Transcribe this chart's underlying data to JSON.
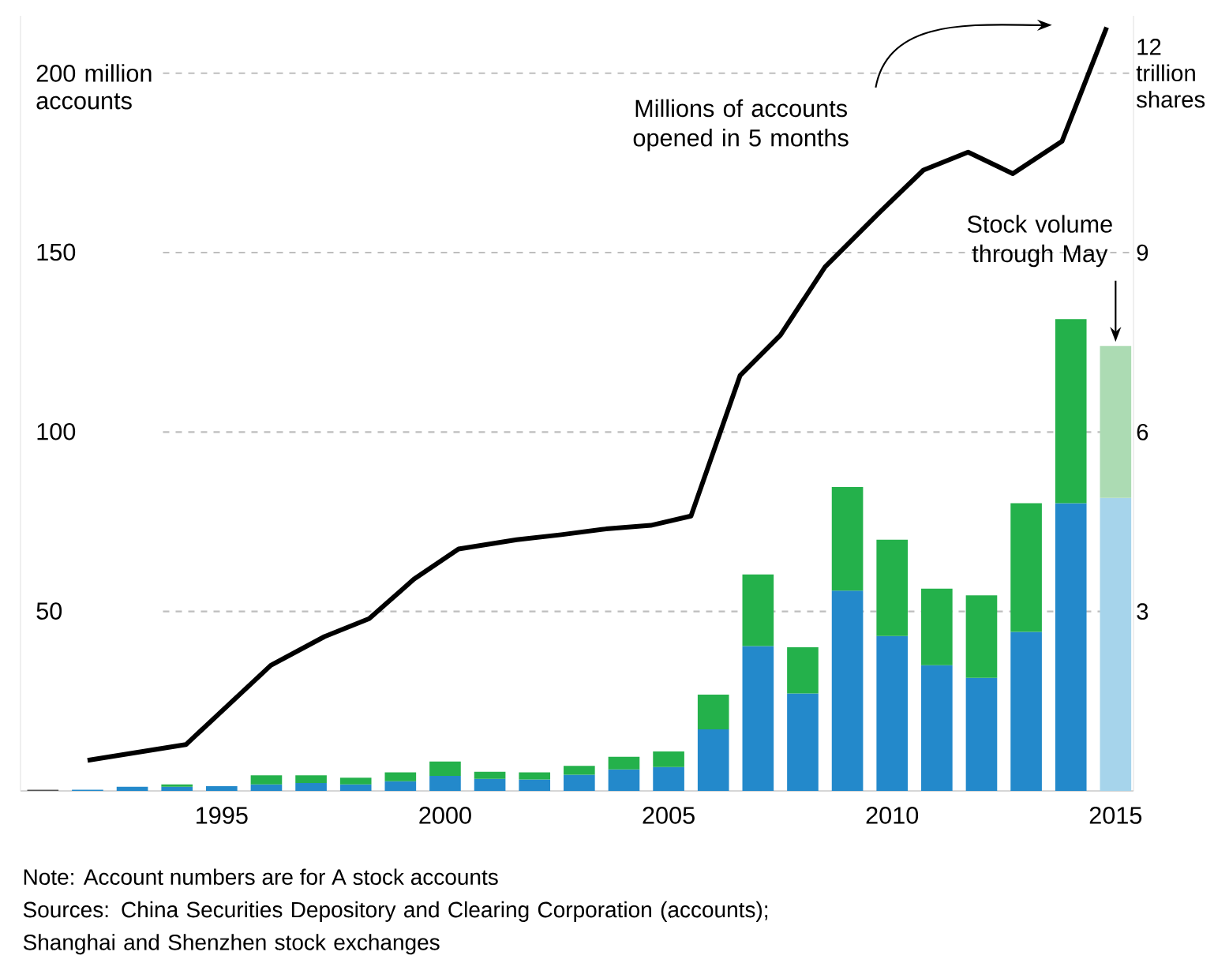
{
  "chart_data": {
    "type": "bar",
    "stacked": true,
    "grid": "y",
    "x": [
      1991,
      1992,
      1993,
      1994,
      1995,
      1996,
      1997,
      1998,
      1999,
      2000,
      2001,
      2002,
      2003,
      2004,
      2005,
      2006,
      2007,
      2008,
      2009,
      2010,
      2011,
      2012,
      2013,
      2014,
      2015
    ],
    "series": [
      {
        "axis": "y2",
        "colors": [
          "#555555",
          "#2389cb",
          "#2389cb",
          "#2389cb",
          "#2389cb",
          "#2389cb",
          "#2389cb",
          "#2389cb",
          "#2389cb",
          "#2389cb",
          "#2389cb",
          "#2389cb",
          "#2389cb",
          "#2389cb",
          "#2389cb",
          "#2389cb",
          "#2389cb",
          "#2389cb",
          "#2389cb",
          "#2389cb",
          "#2389cb",
          "#2389cb",
          "#2389cb",
          "#2389cb",
          "#a6d4eb"
        ],
        "values": [
          0.02,
          0.02,
          0.07,
          0.07,
          0.08,
          0.11,
          0.13,
          0.11,
          0.16,
          0.25,
          0.2,
          0.19,
          0.27,
          0.36,
          0.4,
          1.03,
          2.42,
          1.63,
          3.35,
          2.59,
          2.1,
          1.89,
          2.66,
          4.81,
          4.9
        ]
      },
      {
        "axis": "y2",
        "colors": [
          "#24b14b",
          "#24b14b",
          "#24b14b",
          "#24b14b",
          "#24b14b",
          "#24b14b",
          "#24b14b",
          "#24b14b",
          "#24b14b",
          "#24b14b",
          "#24b14b",
          "#24b14b",
          "#24b14b",
          "#24b14b",
          "#24b14b",
          "#24b14b",
          "#24b14b",
          "#24b14b",
          "#24b14b",
          "#24b14b",
          "#24b14b",
          "#24b14b",
          "#24b14b",
          "#24b14b",
          "#acdbb3"
        ],
        "values": [
          null,
          null,
          null,
          0.04,
          null,
          0.15,
          0.13,
          0.11,
          0.15,
          0.24,
          0.12,
          0.12,
          0.15,
          0.21,
          0.26,
          0.58,
          1.2,
          0.77,
          1.73,
          1.61,
          1.28,
          1.38,
          2.15,
          3.08,
          2.54
        ]
      },
      {
        "type": "line",
        "axis": "y",
        "color": "#000000",
        "x": [
          1992.0,
          1994.2,
          1996.1,
          1997.3,
          1998.3,
          1999.3,
          2000.3,
          2001.6,
          2002.6,
          2003.6,
          2004.6,
          2005.5,
          2006.6,
          2007.5,
          2008.5,
          2009.7,
          2010.7,
          2011.7,
          2012.7,
          2013.8,
          2014.8
        ],
        "values": [
          8.5,
          12.9,
          35,
          43,
          48,
          59,
          67.4,
          70,
          71.4,
          73,
          74,
          76.6,
          115.8,
          127,
          146,
          161,
          173,
          178,
          172,
          181,
          212.8
        ]
      }
    ],
    "xlim": [
      1990.5,
      2015.4
    ],
    "xticks": [
      1995,
      2000,
      2005,
      2010,
      2015
    ],
    "ylim": [
      0,
      216
    ],
    "yticks": [
      50,
      100,
      150,
      {
        "value": 200,
        "label": "200 million accounts"
      }
    ],
    "y2lim": [
      0,
      12.96
    ],
    "y2ticks": [
      3,
      6,
      9,
      {
        "value": 12,
        "label": "12 trillion shares"
      }
    ],
    "annotations": [
      "Millions of accounts opened in 5 months",
      "Stock volume through May",
      "Note: Account numbers are for A stock accounts",
      "Sources: China Securities Depository and Clearing Corporation (accounts); Shanghai and Shenzhen stock exchanges"
    ]
  }
}
